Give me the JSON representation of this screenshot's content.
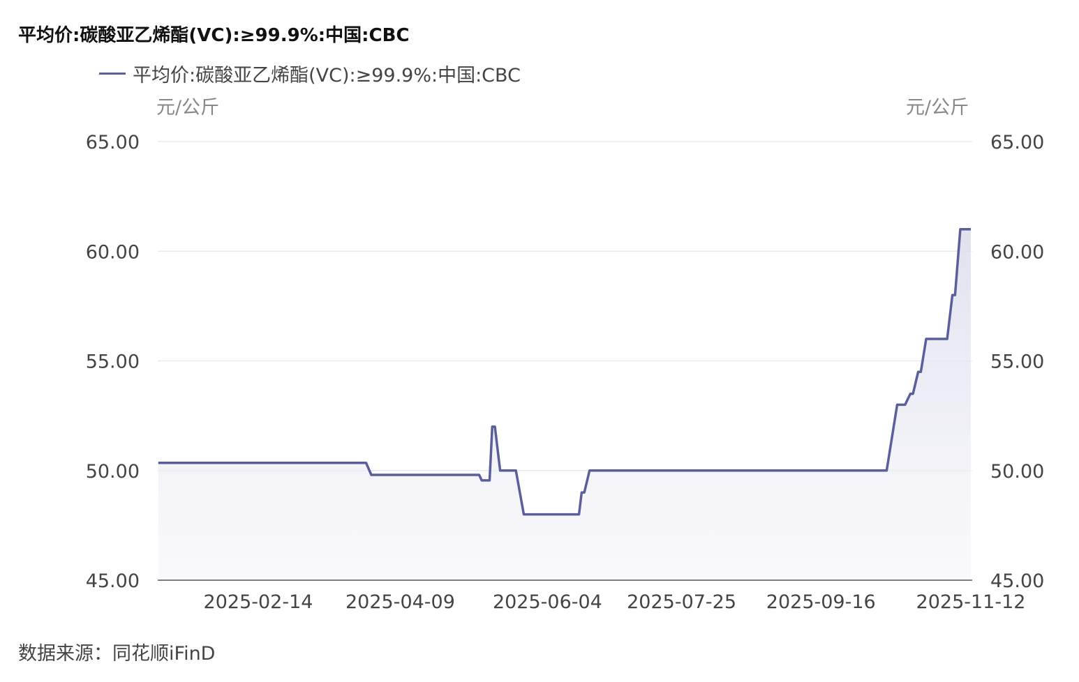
{
  "chart_data": {
    "type": "area",
    "title": "平均价:碳酸亚乙烯酯(VC):≥99.9%:中国:CBC",
    "legend": {
      "position": "top-left",
      "entries": [
        "平均价:碳酸亚乙烯酯(VC):≥99.9%:中国:CBC"
      ]
    },
    "ylabel_left": "元/公斤",
    "ylabel_right": "元/公斤",
    "ylim": [
      45,
      65
    ],
    "y_ticks": [
      "45.00",
      "50.00",
      "55.00",
      "60.00",
      "65.00"
    ],
    "x_ticks": [
      "2025-02-14",
      "2025-04-09",
      "2025-06-04",
      "2025-07-25",
      "2025-09-16",
      "2025-11-12"
    ],
    "xlim": [
      "2025-01-07",
      "2025-11-12"
    ],
    "grid": true,
    "colors": {
      "line": "#5a5f9b",
      "fill": "#e6e7f1"
    },
    "series": [
      {
        "name": "平均价:碳酸亚乙烯酯(VC):≥99.9%:中国:CBC",
        "points": [
          [
            "2025-01-07",
            50.35
          ],
          [
            "2025-03-27",
            50.35
          ],
          [
            "2025-03-29",
            49.8
          ],
          [
            "2025-05-09",
            49.8
          ],
          [
            "2025-05-10",
            49.55
          ],
          [
            "2025-05-13",
            49.55
          ],
          [
            "2025-05-14",
            52
          ],
          [
            "2025-05-15",
            52
          ],
          [
            "2025-05-17",
            50
          ],
          [
            "2025-05-23",
            50
          ],
          [
            "2025-05-26",
            48
          ],
          [
            "2025-06-16",
            48
          ],
          [
            "2025-06-17",
            49
          ],
          [
            "2025-06-18",
            49
          ],
          [
            "2025-06-20",
            50
          ],
          [
            "2025-10-11",
            50
          ],
          [
            "2025-10-15",
            53
          ],
          [
            "2025-10-18",
            53
          ],
          [
            "2025-10-20",
            53.5
          ],
          [
            "2025-10-21",
            53.5
          ],
          [
            "2025-10-23",
            54.5
          ],
          [
            "2025-10-24",
            54.5
          ],
          [
            "2025-10-26",
            56
          ],
          [
            "2025-11-03",
            56
          ],
          [
            "2025-11-05",
            58
          ],
          [
            "2025-11-06",
            58
          ],
          [
            "2025-11-08",
            61
          ],
          [
            "2025-11-12",
            61
          ]
        ]
      }
    ]
  },
  "source": "数据来源：同花顺iFinD"
}
